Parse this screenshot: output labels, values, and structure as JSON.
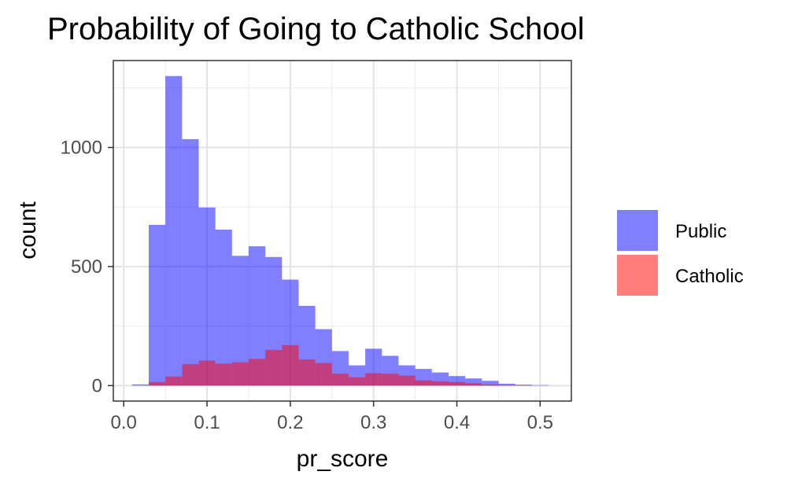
{
  "chart_data": {
    "type": "bar",
    "title": "Probability of Going to Catholic School",
    "xlabel": "pr_score",
    "ylabel": "count",
    "xlim": [
      -0.0125,
      0.5375
    ],
    "ylim": [
      -65,
      1365
    ],
    "x_ticks": [
      "0.0",
      "0.1",
      "0.2",
      "0.3",
      "0.4",
      "0.5"
    ],
    "x_tick_values": [
      0.0,
      0.1,
      0.2,
      0.3,
      0.4,
      0.5
    ],
    "y_ticks": [
      "0",
      "500",
      "1000"
    ],
    "y_tick_values": [
      0,
      500,
      1000
    ],
    "y_minor_values": [
      250,
      750,
      1250
    ],
    "x_minor_values": [
      0.05,
      0.15,
      0.25,
      0.35,
      0.45
    ],
    "grid": true,
    "legend_position": "right",
    "bin_width": 0.02,
    "bin_starts": [
      0.01,
      0.03,
      0.05,
      0.07,
      0.09,
      0.11,
      0.13,
      0.15,
      0.17,
      0.19,
      0.21,
      0.23,
      0.25,
      0.27,
      0.29,
      0.31,
      0.33,
      0.35,
      0.37,
      0.39,
      0.41,
      0.43,
      0.45,
      0.47,
      0.49
    ],
    "series": [
      {
        "name": "Public",
        "color": "#0000ff",
        "opacity": 0.5,
        "values": [
          5,
          675,
          1300,
          1035,
          748,
          655,
          545,
          585,
          540,
          445,
          335,
          237,
          145,
          85,
          155,
          125,
          85,
          70,
          55,
          40,
          30,
          20,
          8,
          4,
          2
        ]
      },
      {
        "name": "Catholic",
        "color": "#ff0000",
        "opacity": 0.5,
        "values": [
          0,
          15,
          38,
          90,
          105,
          92,
          98,
          112,
          150,
          170,
          110,
          95,
          50,
          35,
          52,
          50,
          42,
          22,
          18,
          15,
          10,
          5,
          2,
          1,
          0
        ]
      }
    ]
  }
}
